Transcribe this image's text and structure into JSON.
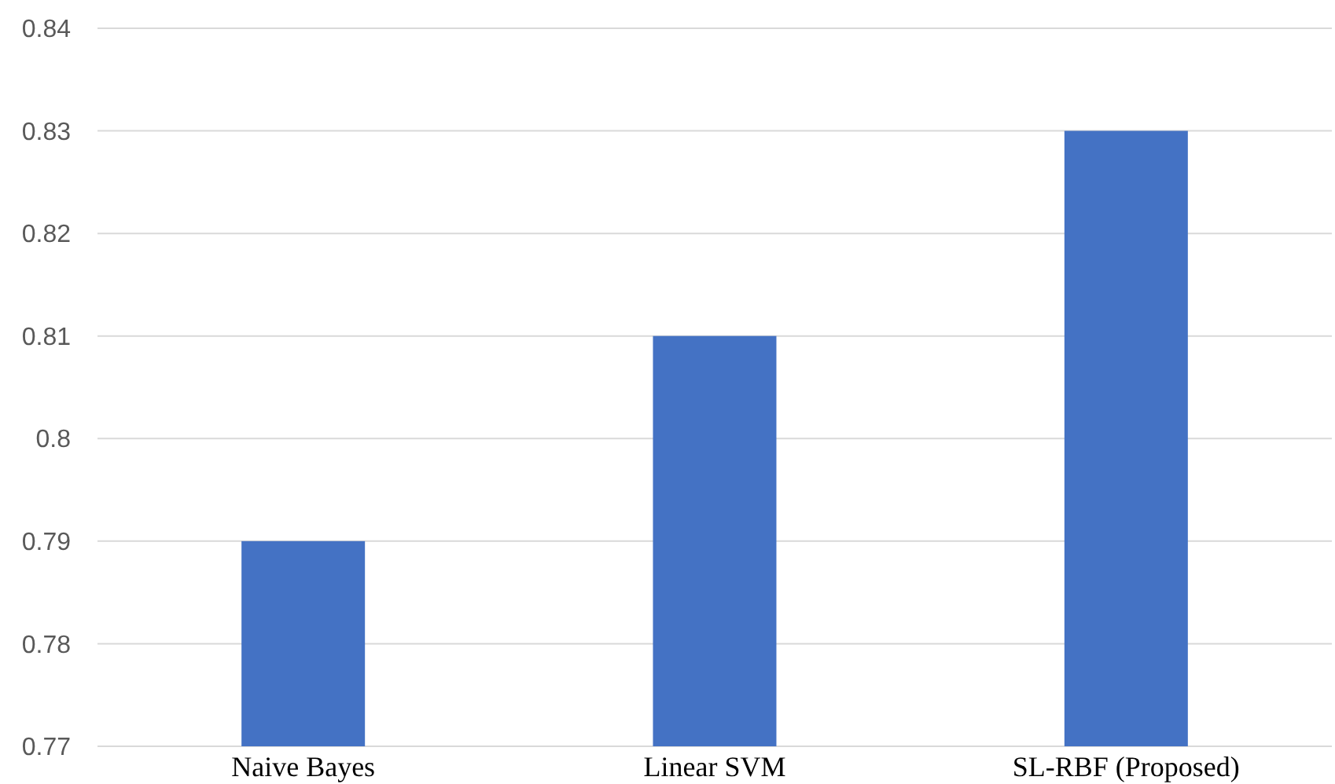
{
  "chart_data": {
    "type": "bar",
    "categories": [
      "Naive Bayes",
      "Linear SVM",
      "SL-RBF (Proposed)"
    ],
    "values": [
      0.79,
      0.81,
      0.83
    ],
    "color": "#4472c4",
    "ylim": [
      0.77,
      0.84
    ],
    "yticks": [
      0.77,
      0.78,
      0.79,
      0.8,
      0.81,
      0.82,
      0.83,
      0.84
    ],
    "grid": "y"
  }
}
